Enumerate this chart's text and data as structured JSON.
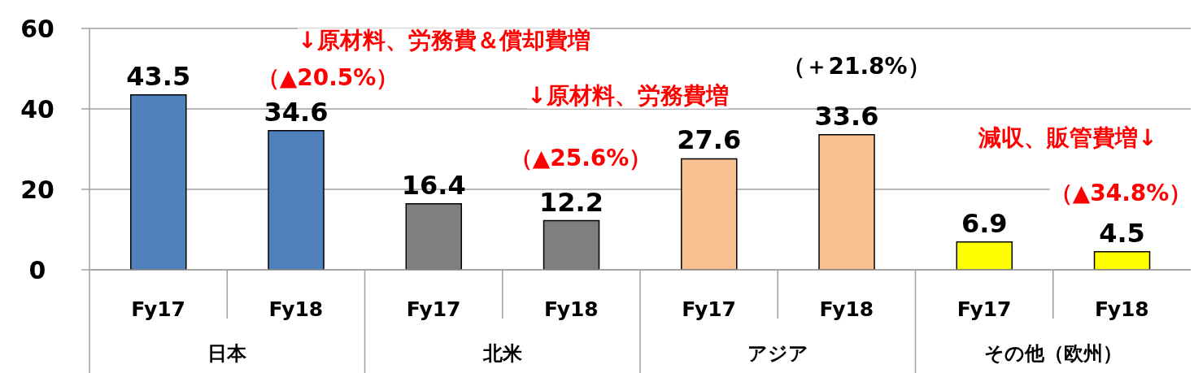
{
  "chart_data": {
    "type": "bar",
    "categories": [
      "Fy17",
      "Fy18",
      "Fy17",
      "Fy18",
      "Fy17",
      "Fy18",
      "Fy17",
      "Fy18"
    ],
    "values": [
      43.5,
      34.6,
      16.4,
      12.2,
      27.6,
      33.6,
      6.9,
      4.5
    ],
    "colors": [
      "#4f81bd",
      "#4f81bd",
      "#7f7f7f",
      "#7f7f7f",
      "#f9c090",
      "#f9c090",
      "#ffff00",
      "#ffff00"
    ],
    "ylim": [
      0,
      60
    ],
    "yticks": [
      0,
      20,
      40,
      60
    ],
    "grid": "y",
    "data_labels": true,
    "annotations": [
      "↓原材料、労務費＆償却費増",
      "（▲20.5%）",
      "↓原材料、労務費増",
      "（▲25.6%）",
      "（＋21.8%）",
      "減収、販管費増↓",
      "（▲34.8%）",
      "日本",
      "北米",
      "アジア",
      "その他（欧州）"
    ]
  }
}
